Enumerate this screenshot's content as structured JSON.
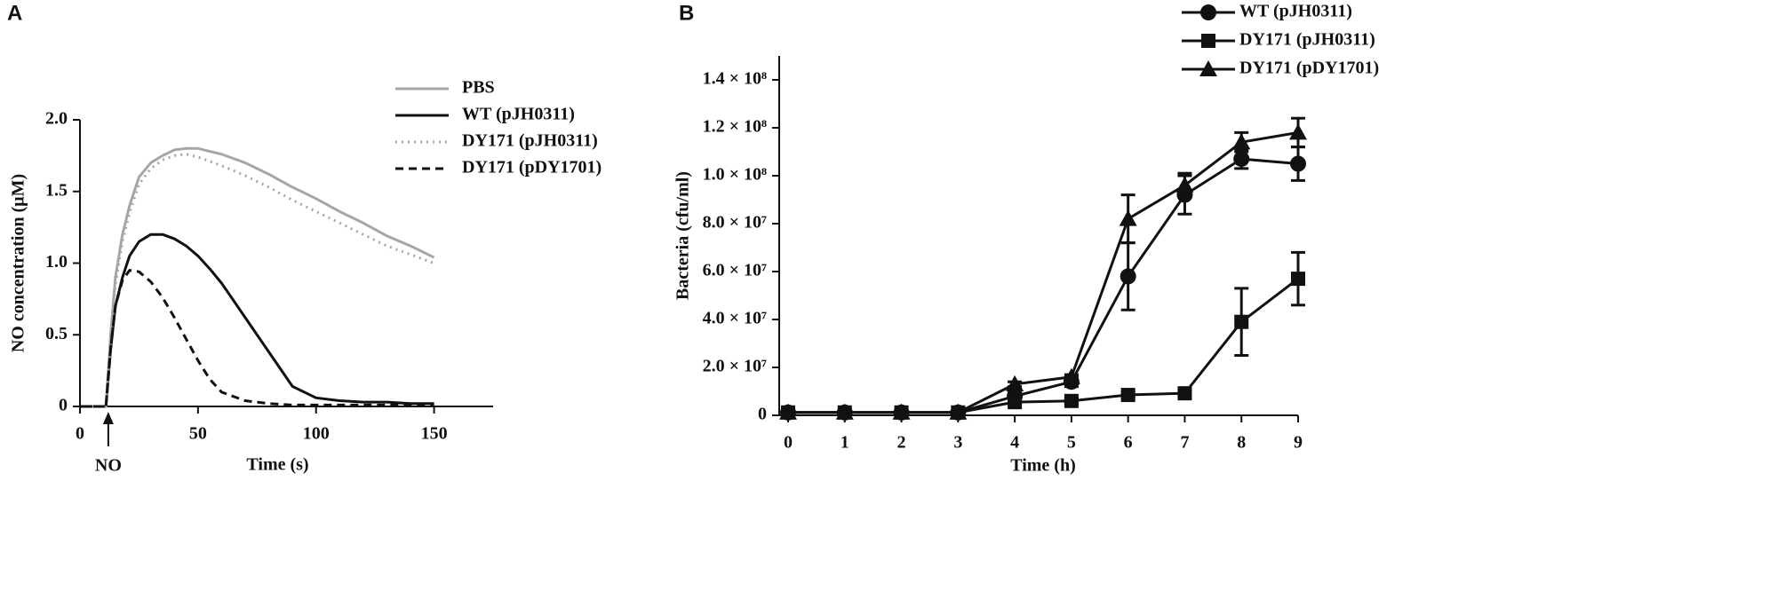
{
  "chart_data": [
    {
      "type": "line",
      "panel_label": "A",
      "xlabel": "Time (s)",
      "ylabel": "NO concentration (μM)",
      "xlim": [
        0,
        175
      ],
      "ylim": [
        0,
        2
      ],
      "xticks": [
        0,
        50,
        100,
        150
      ],
      "yticks": [
        0,
        {
          "value": 0.5,
          "label": "0.5"
        },
        {
          "value": 1,
          "label": "1.0"
        },
        {
          "value": 1.5,
          "label": "1.5"
        },
        {
          "value": 2,
          "label": "2.0"
        }
      ],
      "legend": "upper right",
      "annotations": [
        {
          "text": "NO",
          "x": 12
        }
      ],
      "x": [
        0,
        11,
        13,
        15,
        18,
        21,
        25,
        30,
        35,
        40,
        45,
        50,
        55,
        60,
        70,
        80,
        90,
        100,
        110,
        120,
        130,
        140,
        150
      ],
      "series": [
        {
          "name": "PBS",
          "color": "#a6a6a6",
          "dash": "solid",
          "values": [
            0,
            0,
            0.5,
            0.9,
            1.2,
            1.4,
            1.6,
            1.7,
            1.75,
            1.79,
            1.8,
            1.8,
            1.78,
            1.76,
            1.7,
            1.62,
            1.53,
            1.45,
            1.36,
            1.28,
            1.19,
            1.12,
            1.04
          ]
        },
        {
          "name": "WT (pJH0311)",
          "color": "#111111",
          "dash": "solid",
          "values": [
            0,
            0,
            0.4,
            0.7,
            0.9,
            1.05,
            1.15,
            1.2,
            1.2,
            1.17,
            1.12,
            1.05,
            0.96,
            0.86,
            0.62,
            0.38,
            0.14,
            0.06,
            0.04,
            0.03,
            0.03,
            0.02,
            0.02
          ]
        },
        {
          "name": "DY171 (pJH0311)",
          "color": "#a6a6a6",
          "dash": "dotted",
          "values": [
            0,
            0,
            0.45,
            0.85,
            1.15,
            1.35,
            1.55,
            1.66,
            1.72,
            1.75,
            1.76,
            1.74,
            1.71,
            1.68,
            1.61,
            1.53,
            1.44,
            1.36,
            1.28,
            1.2,
            1.12,
            1.06,
            1.0
          ]
        },
        {
          "name": "DY171 (pDY1701)",
          "color": "#111111",
          "dash": "dashed",
          "values": [
            0,
            0,
            0.4,
            0.7,
            0.88,
            0.95,
            0.94,
            0.87,
            0.76,
            0.62,
            0.47,
            0.32,
            0.19,
            0.1,
            0.04,
            0.02,
            0.01,
            0.01,
            0.01,
            0.01,
            0.01,
            0.01,
            0.01
          ]
        }
      ]
    },
    {
      "type": "line",
      "panel_label": "B",
      "xlabel": "Time (h)",
      "ylabel": "Bacteria (cfu/ml)",
      "xlim": [
        0,
        9
      ],
      "ylim": [
        0,
        150000000
      ],
      "xticks": [
        0,
        1,
        2,
        3,
        4,
        5,
        6,
        7,
        8,
        9
      ],
      "yticks": [
        0,
        {
          "value": 20000000,
          "label": "2.0 × 10⁷"
        },
        {
          "value": 40000000,
          "label": "4.0 × 10⁷"
        },
        {
          "value": 60000000,
          "label": "6.0 × 10⁷"
        },
        {
          "value": 80000000,
          "label": "8.0 × 10⁷"
        },
        {
          "value": 100000000,
          "label": "1.0 × 10⁸"
        },
        {
          "value": 120000000,
          "label": "1.2 × 10⁸"
        },
        {
          "value": 140000000,
          "label": "1.4 × 10⁸"
        }
      ],
      "legend": "top",
      "x": [
        0,
        1,
        2,
        3,
        4,
        5,
        6,
        7,
        8,
        9
      ],
      "series": [
        {
          "name": "WT (pJH0311)",
          "color": "#111111",
          "dash": "solid",
          "marker": "circle",
          "values": [
            1200000,
            1200000,
            1200000,
            1200000,
            8000000,
            14000000,
            58000000,
            92000000,
            107000000,
            105000000
          ],
          "errors": [
            0,
            0,
            0,
            0,
            2000000,
            2000000,
            14000000,
            8000000,
            4000000,
            7000000
          ]
        },
        {
          "name": "DY171 (pJH0311)",
          "color": "#111111",
          "dash": "solid",
          "marker": "square",
          "values": [
            1200000,
            1200000,
            1200000,
            1200000,
            5500000,
            6000000,
            8500000,
            9200000,
            39000000,
            57000000
          ],
          "errors": [
            0,
            0,
            0,
            0,
            1000000,
            1000000,
            1000000,
            1000000,
            14000000,
            11000000
          ]
        },
        {
          "name": "DY171 (pDY1701)",
          "color": "#111111",
          "dash": "solid",
          "marker": "triangle",
          "values": [
            1200000,
            1200000,
            1200000,
            1200000,
            13000000,
            16000000,
            82000000,
            96000000,
            114000000,
            118000000
          ],
          "errors": [
            0,
            0,
            0,
            0,
            1000000,
            1000000,
            10000000,
            5000000,
            4000000,
            6000000
          ]
        }
      ]
    }
  ]
}
